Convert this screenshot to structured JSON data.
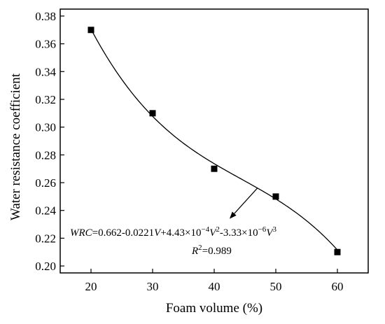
{
  "chart_data": {
    "type": "scatter",
    "xlabel": "Foam volume (%)",
    "ylabel": "Water resistance coefficient",
    "xlim": [
      15,
      65
    ],
    "ylim": [
      0.195,
      0.385
    ],
    "x_ticks": [
      20,
      30,
      40,
      50,
      60
    ],
    "y_ticks": [
      0.2,
      0.22,
      0.24,
      0.26,
      0.28,
      0.3,
      0.32,
      0.34,
      0.36,
      0.38
    ],
    "x_tick_labels": [
      "20",
      "30",
      "40",
      "50",
      "60"
    ],
    "y_tick_labels": [
      "0.20",
      "0.22",
      "0.24",
      "0.26",
      "0.28",
      "0.30",
      "0.32",
      "0.34",
      "0.36",
      "0.38"
    ],
    "series": [
      {
        "x": [
          20,
          30,
          40,
          50,
          60
        ],
        "y": [
          0.37,
          0.31,
          0.27,
          0.25,
          0.21
        ],
        "marker": "square",
        "color": "#000000"
      }
    ],
    "fit": {
      "coefficients": [
        0.662,
        -0.0221,
        0.000443,
        -3.33e-06
      ],
      "x_range": [
        20,
        60
      ]
    },
    "annotation": {
      "equation_parts": [
        "WRC",
        "=0.662-0.0221",
        "V",
        "+4.43×10",
        "−4",
        "V",
        "2",
        "-3.33×10",
        "−6",
        "V",
        "3"
      ],
      "r2_parts": [
        "R",
        "2",
        "=0.989"
      ],
      "arrow_from": [
        47,
        0.256
      ],
      "arrow_to": [
        42.5,
        0.234
      ]
    },
    "grid": false,
    "legend": "none"
  }
}
